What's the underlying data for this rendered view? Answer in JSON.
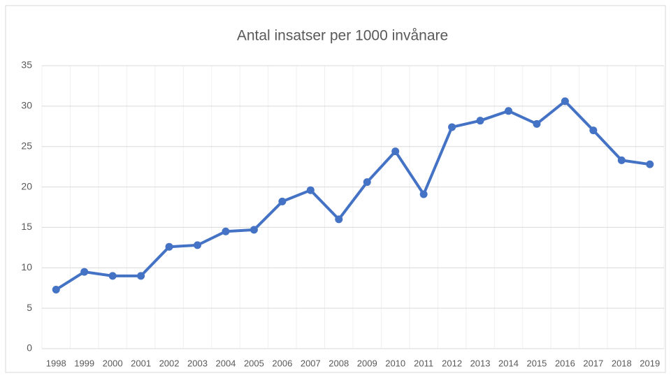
{
  "chart_data": {
    "type": "line",
    "title": "Antal insatser per 1000 invånare",
    "categories": [
      "1998",
      "1999",
      "2000",
      "2001",
      "2002",
      "2003",
      "2004",
      "2005",
      "2006",
      "2007",
      "2008",
      "2009",
      "2010",
      "2011",
      "2012",
      "2013",
      "2014",
      "2015",
      "2016",
      "2017",
      "2018",
      "2019"
    ],
    "values": [
      7.3,
      9.5,
      9.0,
      9.0,
      12.6,
      12.8,
      14.5,
      14.7,
      18.2,
      19.6,
      16.0,
      20.6,
      24.4,
      19.1,
      27.4,
      28.2,
      29.4,
      27.8,
      30.6,
      27.0,
      23.3,
      22.8
    ],
    "color": "#4472c4",
    "ylim": [
      0,
      35
    ],
    "yticks": [
      0,
      5,
      10,
      15,
      20,
      25,
      30,
      35
    ],
    "grid": true
  }
}
